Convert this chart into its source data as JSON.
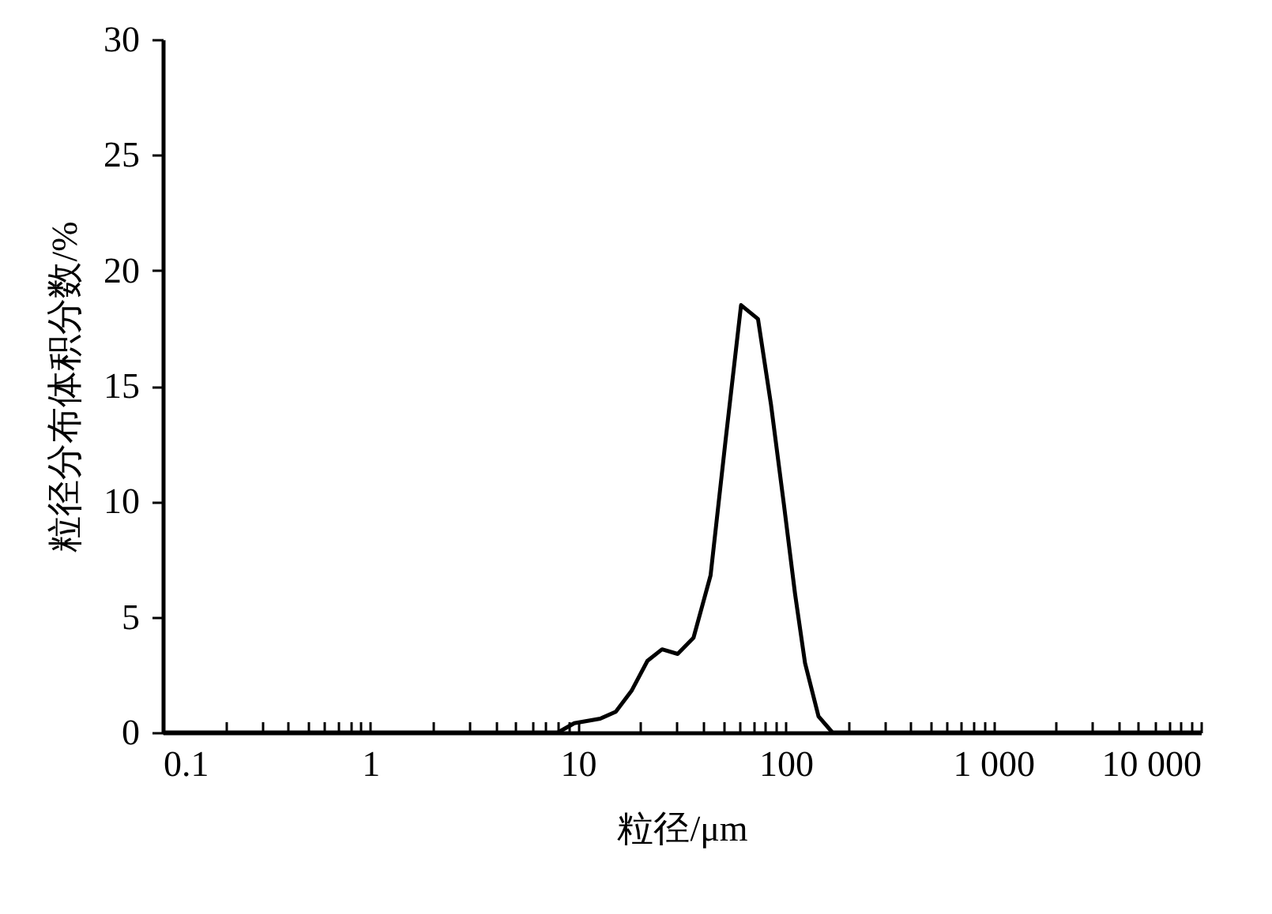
{
  "chart_data": {
    "type": "line",
    "xlabel": "粒径/μm",
    "ylabel": "粒径分布体积分数/%",
    "log": "x",
    "x": [
      0.1,
      8.0,
      9.6,
      12.8,
      15.2,
      18.1,
      21.6,
      25.4,
      30.2,
      36,
      43.5,
      51.3,
      61,
      73.6,
      85,
      98,
      111,
      124,
      144,
      168,
      10000
    ],
    "series": [
      {
        "color": "#000000",
        "values": [
          0,
          0,
          0.4,
          0.6,
          0.9,
          1.8,
          3.1,
          3.6,
          3.4,
          4.1,
          6.8,
          12.6,
          18.5,
          17.9,
          14.2,
          9.9,
          6.0,
          3.0,
          0.7,
          0,
          0
        ]
      }
    ],
    "xlim": [
      0.1,
      10000
    ],
    "xticks": [
      0.1,
      {
        "value": 0.2,
        "label": null
      },
      {
        "value": 0.3,
        "label": null
      },
      {
        "value": 0.4,
        "label": null
      },
      {
        "value": 0.5,
        "label": null
      },
      {
        "value": 0.6,
        "label": null
      },
      {
        "value": 0.7,
        "label": null
      },
      {
        "value": 0.8,
        "label": null
      },
      {
        "value": 0.9,
        "label": null
      },
      1,
      {
        "value": 2,
        "label": null
      },
      {
        "value": 3,
        "label": null
      },
      {
        "value": 4,
        "label": null
      },
      {
        "value": 5,
        "label": null
      },
      {
        "value": 6,
        "label": null
      },
      {
        "value": 7,
        "label": null
      },
      {
        "value": 8,
        "label": null
      },
      {
        "value": 9,
        "label": null
      },
      10,
      {
        "value": 20,
        "label": null
      },
      {
        "value": 30,
        "label": null
      },
      {
        "value": 40,
        "label": null
      },
      {
        "value": 50,
        "label": null
      },
      {
        "value": 60,
        "label": null
      },
      {
        "value": 70,
        "label": null
      },
      {
        "value": 80,
        "label": null
      },
      {
        "value": 90,
        "label": null
      },
      100,
      {
        "value": 200,
        "label": null
      },
      {
        "value": 300,
        "label": null
      },
      {
        "value": 400,
        "label": null
      },
      {
        "value": 500,
        "label": null
      },
      {
        "value": 600,
        "label": null
      },
      {
        "value": 700,
        "label": null
      },
      {
        "value": 800,
        "label": null
      },
      {
        "value": 900,
        "label": null
      },
      {
        "value": 1000,
        "label": "1 000"
      },
      {
        "value": 2000,
        "label": null
      },
      {
        "value": 3000,
        "label": null
      },
      {
        "value": 4000,
        "label": null
      },
      {
        "value": 5000,
        "label": null
      },
      {
        "value": 6000,
        "label": null
      },
      {
        "value": 7000,
        "label": null
      },
      {
        "value": 8000,
        "label": null
      },
      {
        "value": 9000,
        "label": null
      },
      {
        "value": 10000,
        "label": "10 000"
      }
    ],
    "ylim": [
      0,
      30
    ],
    "yticks": [
      0,
      5,
      10,
      15,
      20,
      25,
      30
    ],
    "grid": false,
    "legend": false,
    "marker": "none",
    "line_style": "solid"
  }
}
